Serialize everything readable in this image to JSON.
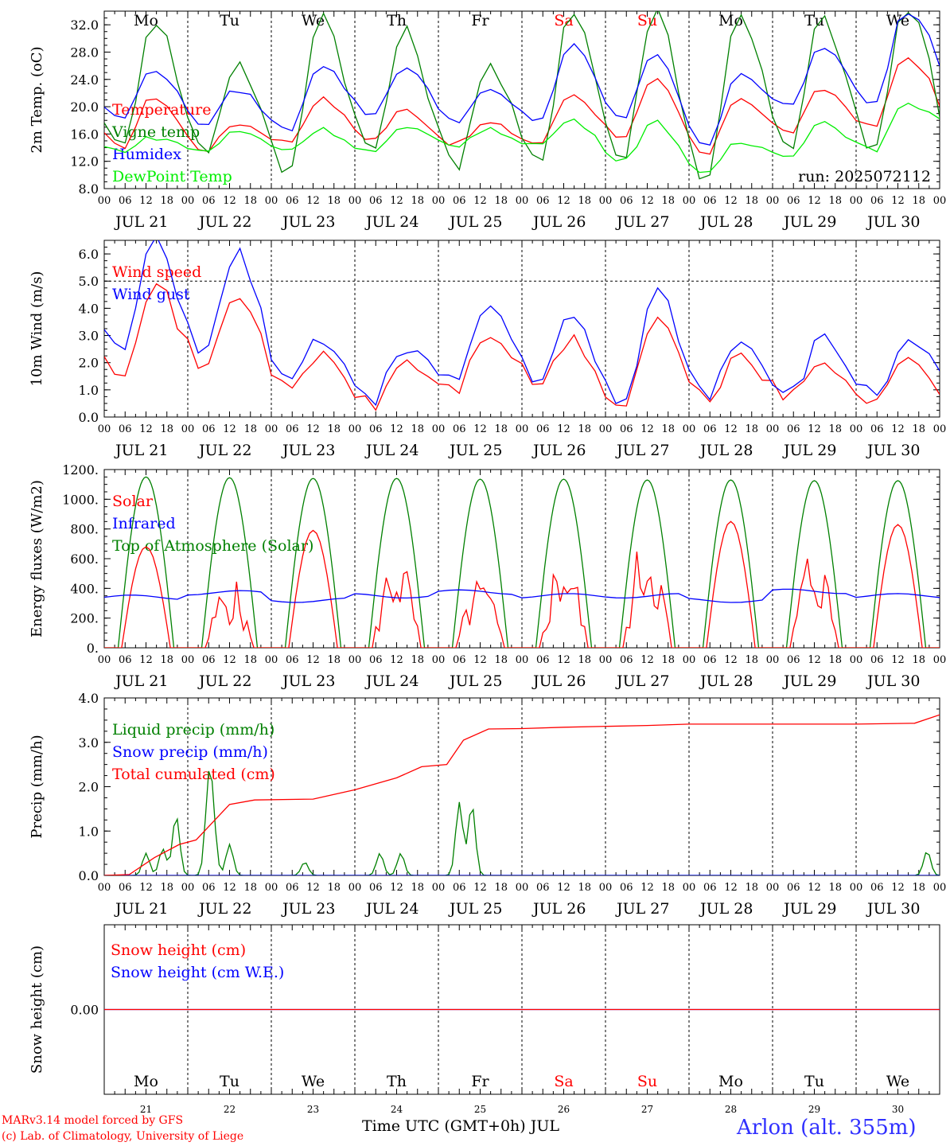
{
  "run_label": "run: 2025072112",
  "chart_data": [
    {
      "type": "line",
      "ylabel": "2m Temp. (oC)",
      "ylim": [
        8,
        34
      ],
      "yticks": [
        8,
        12,
        16,
        20,
        24,
        28,
        32
      ],
      "ytick_labels": [
        "8.0",
        "12.0",
        "16.0",
        "20.0",
        "24.0",
        "28.0",
        "32.0"
      ],
      "legend": [
        "Temperature",
        "Vigne temp",
        "Humidex",
        "DewPoint Temp"
      ],
      "series": [
        {
          "name": "Temperature",
          "color": "#ff0000",
          "min": [
            14.0,
            13.6,
            14.8,
            15.2,
            14.5,
            14.6,
            15.6,
            12.8,
            16.2,
            16.9
          ],
          "max": [
            21.5,
            17.6,
            21.2,
            19.6,
            17.6,
            21.9,
            23.9,
            21.4,
            22.6,
            27.3
          ],
          "end": 19.8
        },
        {
          "name": "Vigne temp",
          "color": "#008000",
          "min": [
            13.6,
            13.5,
            10.2,
            13.4,
            11.4,
            11.6,
            12.2,
            8.9,
            13.3,
            13.6
          ],
          "max": [
            33.0,
            26.5,
            33.8,
            31.0,
            26.0,
            34.5,
            34.5,
            34.0,
            33.0,
            34.5
          ],
          "end": 17.5
        },
        {
          "name": "Humidex",
          "color": "#0000ff",
          "min": [
            18.2,
            17.4,
            16.5,
            18.8,
            17.9,
            18.0,
            18.1,
            13.8,
            19.9,
            20.1
          ],
          "max": [
            25.6,
            22.5,
            26.2,
            25.9,
            22.3,
            29.0,
            28.0,
            25.0,
            28.9,
            34.0
          ],
          "end": 26.3
        },
        {
          "name": "DewPoint Temp",
          "color": "#00ee00",
          "min": [
            13.6,
            13.5,
            13.7,
            13.4,
            14.4,
            14.4,
            12.2,
            10.0,
            13.0,
            13.6
          ],
          "max": [
            15.5,
            16.4,
            16.7,
            16.8,
            16.6,
            18.1,
            17.8,
            14.7,
            17.8,
            20.2
          ],
          "end": 18.5
        }
      ]
    },
    {
      "type": "line",
      "ylabel": "10m Wind (m/s)",
      "ylim": [
        0,
        6.5
      ],
      "yticks": [
        0,
        1,
        2,
        3,
        4,
        5,
        6
      ],
      "ytick_labels": [
        "0.0",
        "1.0",
        "2.0",
        "3.0",
        "4.0",
        "5.0",
        "6.0"
      ],
      "reference_line": 5.0,
      "legend": [
        "Wind speed",
        "Wind gust"
      ],
      "series": [
        {
          "name": "Wind speed",
          "color": "#ff0000",
          "min": [
            1.7,
            1.8,
            0.9,
            0.4,
            1.0,
            1.2,
            0.3,
            0.6,
            0.7,
            0.7
          ],
          "max": [
            4.9,
            4.6,
            2.3,
            2.0,
            3.1,
            2.8,
            3.6,
            2.3,
            2.0,
            2.0
          ],
          "end": 1.0
        },
        {
          "name": "Wind gust",
          "color": "#0000ff",
          "min": [
            2.3,
            2.4,
            1.1,
            0.5,
            1.2,
            1.4,
            0.4,
            0.8,
            0.9,
            0.9
          ],
          "max": [
            6.4,
            6.0,
            3.0,
            2.6,
            4.1,
            3.6,
            4.7,
            2.9,
            2.8,
            2.6
          ],
          "end": 1.5
        }
      ]
    },
    {
      "type": "line",
      "ylabel": "Energy fluxes (W/m2)",
      "ylim": [
        0,
        1200
      ],
      "yticks": [
        0,
        200,
        400,
        600,
        800,
        1000,
        1200
      ],
      "ytick_labels": [
        "0.",
        "200.",
        "400.",
        "600.",
        "800.",
        "1000.",
        "1200."
      ],
      "legend": [
        "Solar",
        "Infrared",
        "Top of Atmosphere (Solar)"
      ],
      "series": [
        {
          "name": "Solar",
          "color": "#ff0000",
          "daily_max": [
            680,
            500,
            790,
            710,
            490,
            720,
            860,
            850,
            760,
            830
          ]
        },
        {
          "name": "Infrared",
          "color": "#0000ff",
          "mean": [
            340,
            370,
            320,
            350,
            375,
            350,
            350,
            320,
            380,
            350
          ]
        },
        {
          "name": "Top of Atmosphere (Solar)",
          "color": "#008000",
          "daily_max": [
            1150,
            1145,
            1140,
            1140,
            1135,
            1135,
            1130,
            1130,
            1125,
            1125
          ]
        }
      ]
    },
    {
      "type": "line",
      "ylabel": "Precip (mm/h)",
      "ylim": [
        0,
        4
      ],
      "yticks": [
        0,
        1,
        2,
        3,
        4
      ],
      "ytick_labels": [
        "0.0",
        "1.0",
        "2.0",
        "3.0",
        "4.0"
      ],
      "legend": [
        "Liquid precip (mm/h)",
        "Snow precip (mm/h)",
        "Total cumulated (cm)"
      ],
      "series": [
        {
          "name": "Liquid precip (mm/h)",
          "color": "#008000",
          "peaks": [
            [
              0.5,
              0.5
            ],
            [
              0.7,
              0.6
            ],
            [
              0.86,
              1.35
            ],
            [
              1.25,
              1.85
            ],
            [
              1.3,
              1.0
            ],
            [
              1.5,
              0.7
            ],
            [
              2.4,
              0.3
            ],
            [
              3.3,
              0.5
            ],
            [
              3.55,
              0.5
            ],
            [
              4.25,
              1.65
            ],
            [
              4.4,
              1.6
            ],
            [
              9.85,
              0.55
            ]
          ]
        },
        {
          "name": "Snow precip (mm/h)",
          "color": "#0000ff",
          "values": [
            0
          ]
        },
        {
          "name": "Total cumulated (cm)",
          "color": "#ff0000",
          "points": [
            [
              0,
              0
            ],
            [
              0.3,
              0.02
            ],
            [
              0.6,
              0.4
            ],
            [
              0.9,
              0.7
            ],
            [
              1.1,
              0.8
            ],
            [
              1.5,
              1.6
            ],
            [
              1.8,
              1.7
            ],
            [
              2.5,
              1.72
            ],
            [
              3.0,
              1.93
            ],
            [
              3.5,
              2.2
            ],
            [
              3.8,
              2.45
            ],
            [
              4.1,
              2.5
            ],
            [
              4.3,
              3.05
            ],
            [
              4.6,
              3.3
            ],
            [
              5.0,
              3.31
            ],
            [
              5.5,
              3.34
            ],
            [
              6.5,
              3.38
            ],
            [
              7.0,
              3.41
            ],
            [
              9.0,
              3.41
            ],
            [
              9.7,
              3.43
            ],
            [
              10.0,
              3.62
            ]
          ]
        }
      ]
    },
    {
      "type": "line",
      "ylabel": "Snow height (cm)",
      "ylim": [
        -1,
        1
      ],
      "yticks": [
        0
      ],
      "ytick_labels": [
        "0.00"
      ],
      "legend": [
        "Snow height (cm)",
        "Snow height (cm W.E.)"
      ],
      "series": [
        {
          "name": "Snow height (cm)",
          "color": "#ff0000",
          "values": [
            0
          ]
        },
        {
          "name": "Snow height (cm W.E.)",
          "color": "#0000ff",
          "values": [
            0
          ]
        }
      ]
    }
  ],
  "xaxis": {
    "hour_ticks": [
      "00",
      "06",
      "12",
      "18"
    ],
    "last_tick": "00",
    "date_labels": [
      "JUL 21",
      "JUL 22",
      "JUL 23",
      "JUL 24",
      "JUL 25",
      "JUL 26",
      "JUL 27",
      "JUL 28",
      "JUL 29",
      "JUL 30"
    ],
    "weekday_labels": [
      "Mo",
      "Tu",
      "We",
      "Th",
      "Fr",
      "Sa",
      "Su",
      "Mo",
      "Tu",
      "We"
    ],
    "weekend_flags": [
      false,
      false,
      false,
      false,
      false,
      true,
      true,
      false,
      false,
      false
    ],
    "day_numbers": [
      "21",
      "22",
      "23",
      "24",
      "25",
      "26",
      "27",
      "28",
      "29",
      "30"
    ]
  },
  "footer": {
    "credit_line1": "MARv3.14 model forced by GFS",
    "credit_line2": "(c) Lab. of Climatology, University of Liege",
    "time_label": "Time UTC (GMT+0h) JUL",
    "station": "Arlon (alt. 355m)"
  }
}
